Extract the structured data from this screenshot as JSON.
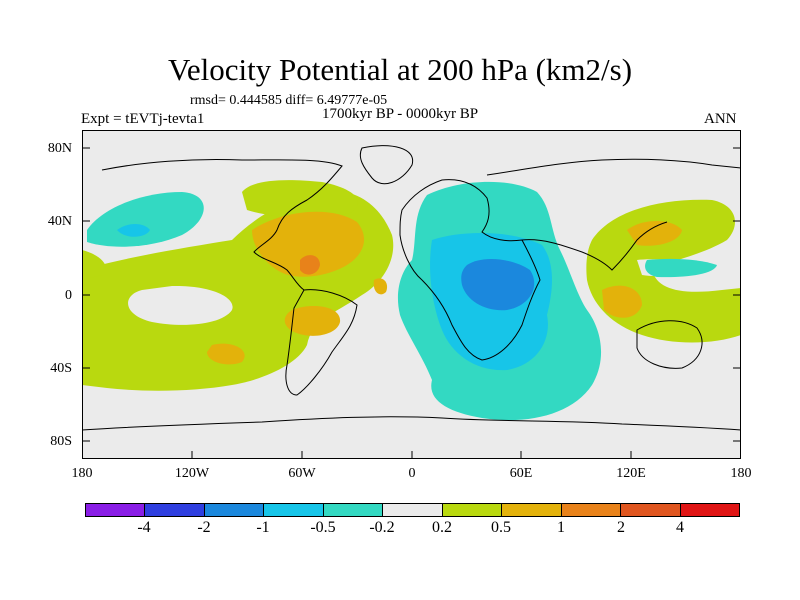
{
  "title": "Velocity Potential at 200 hPa (km2/s)",
  "stats": "rmsd= 0.444585 diff= 6.49777e-05",
  "experiment": "Expt = tEVTj-tevta1",
  "period": "1700kyr BP - 0000kyr BP",
  "season": "ANN",
  "y_axis_labels": [
    "80N",
    "40N",
    "0",
    "40S",
    "80S"
  ],
  "x_axis_labels": [
    "180",
    "120W",
    "60W",
    "0",
    "60E",
    "120E",
    "180"
  ],
  "colorbar": {
    "labels": [
      "-4",
      "-2",
      "-1",
      "-0.5",
      "-0.2",
      "0.2",
      "0.5",
      "1",
      "2",
      "4"
    ],
    "colors": [
      "#8a1ee6",
      "#2f3fe0",
      "#1b88dd",
      "#17c5e8",
      "#33d9c2",
      "#ebebeb",
      "#b9d90f",
      "#e3b20b",
      "#e8821a",
      "#e0561f",
      "#e01515"
    ]
  },
  "map_colors": {
    "ocean": "#ebebeb",
    "weak_neg": "#33d9c2",
    "neg": "#17c5e8",
    "mid_neg": "#1b88dd",
    "weak_pos": "#b9d90f",
    "pos": "#e3b20b",
    "mid_pos": "#e8821a"
  }
}
